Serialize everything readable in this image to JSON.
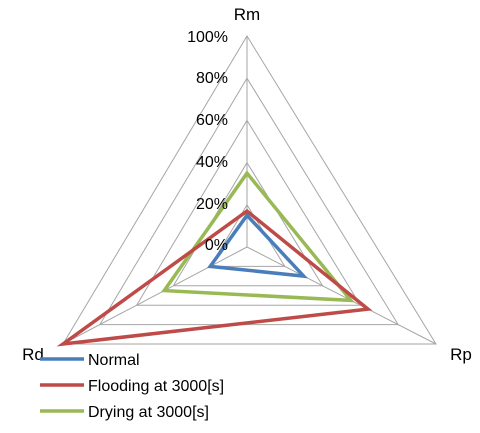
{
  "chart_data": {
    "type": "radar",
    "axes": [
      "Rm",
      "Rp",
      "Rd"
    ],
    "tick_labels": [
      "0%",
      "20%",
      "40%",
      "60%",
      "80%",
      "100%"
    ],
    "range": [
      0,
      100
    ],
    "grid": true,
    "legend_position": "bottom-left",
    "series": [
      {
        "name": "Normal",
        "values": [
          15,
          30,
          20
        ],
        "color": "#4a7ebb"
      },
      {
        "name": "Flooding at 3000[s]",
        "values": [
          17,
          64,
          100
        ],
        "color": "#be4b48"
      },
      {
        "name": "Drying at 3000[s]",
        "values": [
          35,
          55,
          45
        ],
        "color": "#98b954"
      }
    ]
  }
}
